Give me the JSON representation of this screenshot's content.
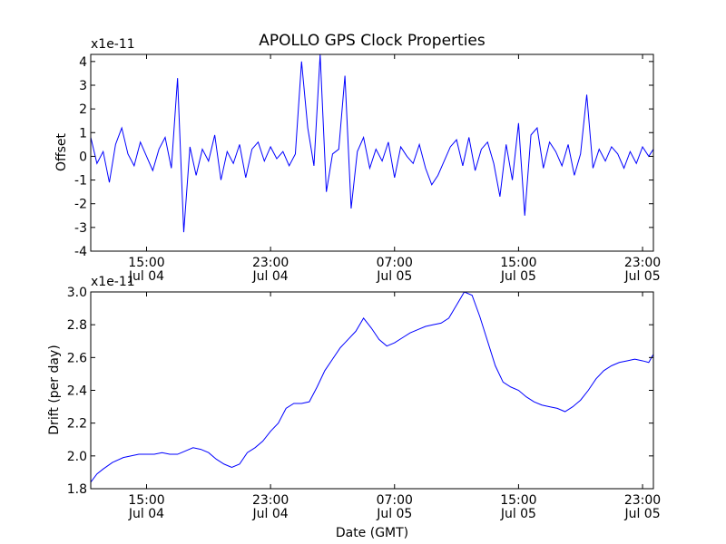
{
  "figure": {
    "title": "APOLLO GPS Clock Properties",
    "xlabel": "Date (GMT)",
    "x_ticks": [
      {
        "time": "15:00",
        "date": "Jul 04"
      },
      {
        "time": "23:00",
        "date": "Jul 04"
      },
      {
        "time": "07:00",
        "date": "Jul 05"
      },
      {
        "time": "15:00",
        "date": "Jul 05"
      },
      {
        "time": "23:00",
        "date": "Jul 05"
      }
    ]
  },
  "chart_data": [
    {
      "type": "line",
      "ylabel": "Offset",
      "scale_label": "x1e-11",
      "color": "#0000ff",
      "x_unit": "hours after Jul 04 00:00 GMT",
      "xlim": [
        11.4,
        47.7
      ],
      "ylim": [
        -4,
        4.3
      ],
      "yticks": [
        -4,
        -3,
        -2,
        -1,
        0,
        1,
        2,
        3,
        4
      ],
      "ytick_labels": [
        "-4",
        "-3",
        "-2",
        "-1",
        "0",
        "1",
        "2",
        "3",
        "4"
      ],
      "grid": false,
      "series": [
        {
          "name": "",
          "x": [
            11.4,
            11.8,
            12.2,
            12.6,
            13.0,
            13.4,
            13.8,
            14.2,
            14.6,
            15.0,
            15.4,
            15.8,
            16.2,
            16.6,
            17.0,
            17.4,
            17.8,
            18.2,
            18.6,
            19.0,
            19.4,
            19.8,
            20.2,
            20.6,
            21.0,
            21.4,
            21.8,
            22.2,
            22.6,
            23.0,
            23.4,
            23.8,
            24.2,
            24.6,
            25.0,
            25.4,
            25.8,
            26.2,
            26.6,
            27.0,
            27.4,
            27.8,
            28.2,
            28.6,
            29.0,
            29.4,
            29.8,
            30.2,
            30.6,
            31.0,
            31.4,
            31.8,
            32.2,
            32.6,
            33.0,
            33.4,
            33.8,
            34.2,
            34.6,
            35.0,
            35.4,
            35.8,
            36.2,
            36.6,
            37.0,
            37.4,
            37.8,
            38.2,
            38.6,
            39.0,
            39.4,
            39.8,
            40.2,
            40.6,
            41.0,
            41.4,
            41.8,
            42.2,
            42.6,
            43.0,
            43.4,
            43.8,
            44.2,
            44.6,
            45.0,
            45.4,
            45.8,
            46.2,
            46.6,
            47.0,
            47.4,
            47.7
          ],
          "values": [
            0.8,
            -0.3,
            0.2,
            -1.1,
            0.5,
            1.2,
            0.1,
            -0.4,
            0.6,
            0.0,
            -0.6,
            0.3,
            0.8,
            -0.5,
            3.3,
            -3.2,
            0.4,
            -0.8,
            0.3,
            -0.2,
            0.9,
            -1.0,
            0.2,
            -0.3,
            0.5,
            -0.9,
            0.3,
            0.6,
            -0.2,
            0.4,
            -0.1,
            0.2,
            -0.4,
            0.1,
            4.0,
            1.2,
            -0.4,
            4.3,
            -1.5,
            0.1,
            0.3,
            3.4,
            -2.2,
            0.2,
            0.8,
            -0.5,
            0.3,
            -0.2,
            0.6,
            -0.9,
            0.4,
            0.0,
            -0.3,
            0.5,
            -0.5,
            -1.2,
            -0.8,
            -0.2,
            0.4,
            0.7,
            -0.4,
            0.8,
            -0.6,
            0.3,
            0.6,
            -0.3,
            -1.7,
            0.5,
            -1.0,
            1.4,
            -2.5,
            0.9,
            1.2,
            -0.5,
            0.6,
            0.2,
            -0.4,
            0.5,
            -0.8,
            0.1,
            2.6,
            -0.5,
            0.3,
            -0.2,
            0.4,
            0.1,
            -0.5,
            0.2,
            -0.3,
            0.4,
            0.0,
            0.3
          ]
        }
      ]
    },
    {
      "type": "line",
      "ylabel": "Drift (per day)",
      "scale_label": "x1e-11",
      "color": "#0000ff",
      "x_unit": "hours after Jul 04 00:00 GMT",
      "xlim": [
        11.4,
        47.7
      ],
      "ylim": [
        1.8,
        3.0
      ],
      "yticks": [
        1.8,
        2.0,
        2.2,
        2.4,
        2.6,
        2.8,
        3.0
      ],
      "ytick_labels": [
        "1.8",
        "2.0",
        "2.2",
        "2.4",
        "2.6",
        "2.8",
        "3.0"
      ],
      "grid": false,
      "series": [
        {
          "name": "",
          "x": [
            11.4,
            11.8,
            12.2,
            12.8,
            13.5,
            14.5,
            15.5,
            16.0,
            16.5,
            17.0,
            17.5,
            18.0,
            18.5,
            19.0,
            19.5,
            20.0,
            20.5,
            21.0,
            21.5,
            22.0,
            22.5,
            23.0,
            23.5,
            24.0,
            24.5,
            25.0,
            25.5,
            26.0,
            26.5,
            27.0,
            27.5,
            28.0,
            28.5,
            29.0,
            29.5,
            30.0,
            30.5,
            31.0,
            31.5,
            32.0,
            32.5,
            33.0,
            33.5,
            34.0,
            34.5,
            35.0,
            35.5,
            36.0,
            36.5,
            37.0,
            37.5,
            38.0,
            38.5,
            39.0,
            39.5,
            40.0,
            40.5,
            41.0,
            41.5,
            42.0,
            42.5,
            43.0,
            43.5,
            44.0,
            44.5,
            45.0,
            45.5,
            46.0,
            46.5,
            47.0,
            47.4,
            47.7
          ],
          "values": [
            1.84,
            1.89,
            1.92,
            1.96,
            1.99,
            2.01,
            2.01,
            2.02,
            2.01,
            2.01,
            2.03,
            2.05,
            2.04,
            2.02,
            1.98,
            1.95,
            1.93,
            1.95,
            2.02,
            2.05,
            2.09,
            2.15,
            2.2,
            2.29,
            2.32,
            2.32,
            2.33,
            2.42,
            2.52,
            2.59,
            2.66,
            2.71,
            2.76,
            2.84,
            2.78,
            2.71,
            2.67,
            2.69,
            2.72,
            2.75,
            2.77,
            2.79,
            2.8,
            2.81,
            2.84,
            2.92,
            3.0,
            2.98,
            2.85,
            2.7,
            2.55,
            2.45,
            2.42,
            2.4,
            2.36,
            2.33,
            2.31,
            2.3,
            2.29,
            2.27,
            2.3,
            2.34,
            2.4,
            2.47,
            2.52,
            2.55,
            2.57,
            2.58,
            2.59,
            2.58,
            2.57,
            2.62
          ]
        }
      ]
    }
  ]
}
